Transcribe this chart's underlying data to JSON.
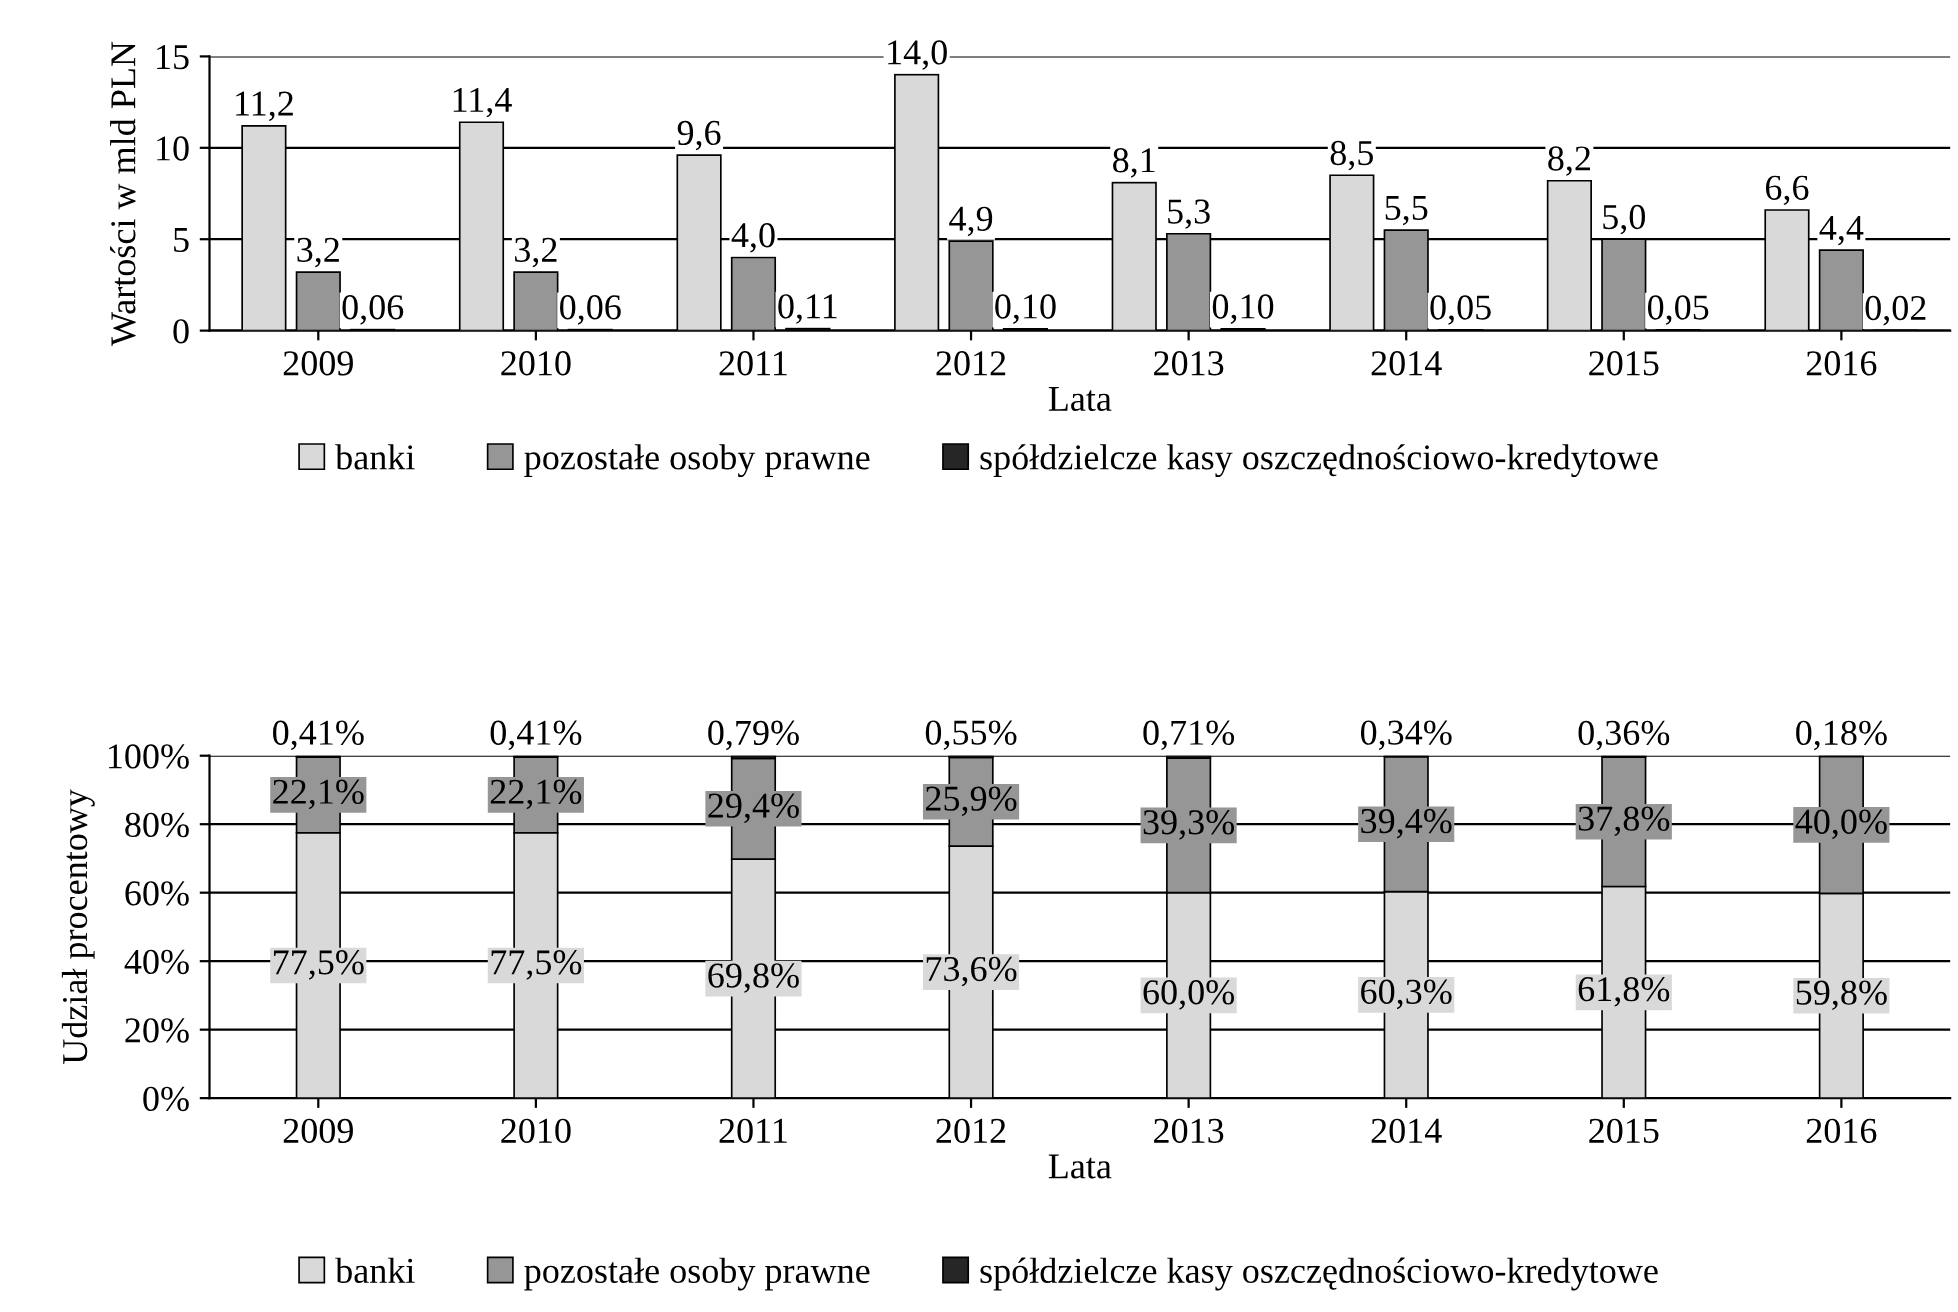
{
  "chart_data": [
    {
      "type": "bar",
      "ylabel": "Wartości w mld PLN",
      "xlabel": "Lata",
      "categories": [
        "2009",
        "2010",
        "2011",
        "2012",
        "2013",
        "2014",
        "2015",
        "2016"
      ],
      "ylim": [
        0,
        15
      ],
      "yticks": [
        0,
        5,
        10,
        15
      ],
      "grid": "y",
      "legend": "bottom",
      "series": [
        {
          "name": "banki",
          "color": "#d9d9d9",
          "values": [
            11.2,
            11.4,
            9.6,
            14.0,
            8.1,
            8.5,
            8.2,
            6.6
          ],
          "value_labels": [
            "11,2",
            "11,4",
            "9,6",
            "14,0",
            "8,1",
            "8,5",
            "8,2",
            "6,6"
          ]
        },
        {
          "name": "pozostałe osoby prawne",
          "color": "#969696",
          "values": [
            3.2,
            3.2,
            4.0,
            4.9,
            5.3,
            5.5,
            5.0,
            4.4
          ],
          "value_labels": [
            "3,2",
            "3,2",
            "4,0",
            "4,9",
            "5,3",
            "5,5",
            "5,0",
            "4,4"
          ]
        },
        {
          "name": "spółdzielcze kasy oszczędnościowo-kredytowe",
          "color": "#262626",
          "values": [
            0.06,
            0.06,
            0.11,
            0.1,
            0.1,
            0.05,
            0.05,
            0.02
          ],
          "value_labels": [
            "0,06",
            "0,06",
            "0,11",
            "0,10",
            "0,10",
            "0,05",
            "0,05",
            "0,02"
          ]
        }
      ]
    },
    {
      "type": "bar",
      "stacked": true,
      "ylabel": "Udział procentowy",
      "xlabel": "Lata",
      "categories": [
        "2009",
        "2010",
        "2011",
        "2012",
        "2013",
        "2014",
        "2015",
        "2016"
      ],
      "ylim": [
        0,
        100
      ],
      "yticks": [
        {
          "value": 0,
          "label": "0%"
        },
        {
          "value": 20,
          "label": "20%"
        },
        {
          "value": 40,
          "label": "40%"
        },
        {
          "value": 60,
          "label": "60%"
        },
        {
          "value": 80,
          "label": "80%"
        },
        {
          "value": 100,
          "label": "100%"
        }
      ],
      "grid": "y",
      "legend": "bottom",
      "series": [
        {
          "name": "banki",
          "color": "#d9d9d9",
          "values": [
            77.5,
            77.5,
            69.8,
            73.6,
            60.0,
            60.3,
            61.8,
            59.8
          ],
          "value_labels": [
            "77,5%",
            "77,5%",
            "69,8%",
            "73,6%",
            "60,0%",
            "60,3%",
            "61,8%",
            "59,8%"
          ]
        },
        {
          "name": "pozostałe osoby prawne",
          "color": "#969696",
          "values": [
            22.1,
            22.1,
            29.4,
            25.9,
            39.3,
            39.4,
            37.8,
            40.0
          ],
          "value_labels": [
            "22,1%",
            "22,1%",
            "29,4%",
            "25,9%",
            "39,3%",
            "39,4%",
            "37,8%",
            "40,0%"
          ]
        },
        {
          "name": "spółdzielcze kasy oszczędnościowo-kredytowe",
          "color": "#262626",
          "values": [
            0.41,
            0.41,
            0.79,
            0.55,
            0.71,
            0.34,
            0.36,
            0.18
          ],
          "value_labels": [
            "0,41%",
            "0,41%",
            "0,79%",
            "0,55%",
            "0,71%",
            "0,34%",
            "0,36%",
            "0,18%"
          ]
        }
      ]
    }
  ]
}
